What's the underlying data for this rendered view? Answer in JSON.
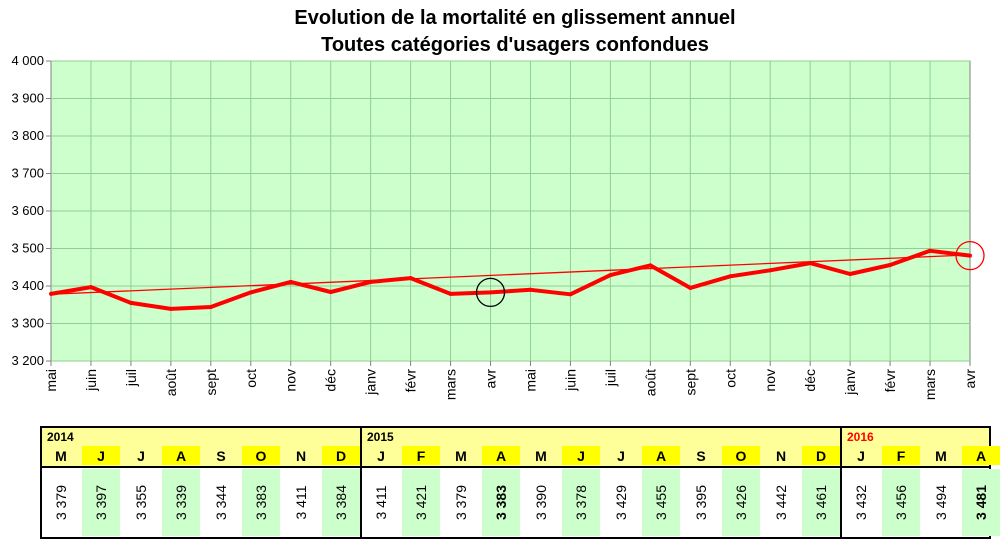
{
  "chart_data": {
    "type": "line",
    "title": [
      "Evolution de la mortalité en glissement annuel",
      "Toutes catégories d'usagers confondues"
    ],
    "xlabel": "",
    "ylabel": "",
    "x": [
      "mai",
      "juin",
      "juil",
      "août",
      "sept",
      "oct",
      "nov",
      "déc",
      "janv",
      "févr",
      "mars",
      "avr",
      "mai",
      "juin",
      "juil",
      "août",
      "sept",
      "oct",
      "nov",
      "déc",
      "janv",
      "févr",
      "mars",
      "avr"
    ],
    "series": [
      {
        "values": [
          3379,
          3397,
          3355,
          3339,
          3344,
          3383,
          3411,
          3384,
          3411,
          3421,
          3379,
          3383,
          3390,
          3378,
          3429,
          3455,
          3395,
          3426,
          3442,
          3461,
          3432,
          3456,
          3494,
          3481
        ]
      }
    ],
    "trendline": [
      3378,
      3483
    ],
    "ylim": [
      3200,
      4000
    ],
    "yticks": [
      "3 200",
      "3 300",
      "3 400",
      "3 500",
      "3 600",
      "3 700",
      "3 800",
      "3 900",
      "4 000"
    ],
    "grid": true,
    "highlighted_points": [
      {
        "index": 11,
        "color": "#000000"
      },
      {
        "index": 23,
        "color": "#ff0000"
      }
    ],
    "colors": {
      "line": "#ff0000",
      "plot_bg": "#ccffcc",
      "grid": "#8fd08f",
      "highlight_cell": "#ffff00",
      "value_cell": "#ccffcc",
      "year_band": "#ffff99"
    }
  },
  "table": {
    "groups": [
      {
        "year": "2014",
        "year_color": "#000000",
        "cells": [
          {
            "m": "M",
            "v": "3 379",
            "h": false,
            "b": false
          },
          {
            "m": "J",
            "v": "3 397",
            "h": true,
            "b": false
          },
          {
            "m": "J",
            "v": "3 355",
            "h": false,
            "b": false
          },
          {
            "m": "A",
            "v": "3 339",
            "h": true,
            "b": false
          },
          {
            "m": "S",
            "v": "3 344",
            "h": false,
            "b": false
          },
          {
            "m": "O",
            "v": "3 383",
            "h": true,
            "b": false
          },
          {
            "m": "N",
            "v": "3 411",
            "h": false,
            "b": false
          },
          {
            "m": "D",
            "v": "3 384",
            "h": true,
            "b": false
          }
        ]
      },
      {
        "year": "2015",
        "year_color": "#000000",
        "cells": [
          {
            "m": "J",
            "v": "3 411",
            "h": false,
            "b": false
          },
          {
            "m": "F",
            "v": "3 421",
            "h": true,
            "b": false
          },
          {
            "m": "M",
            "v": "3 379",
            "h": false,
            "b": false
          },
          {
            "m": "A",
            "v": "3 383",
            "h": true,
            "b": true
          },
          {
            "m": "M",
            "v": "3 390",
            "h": false,
            "b": false
          },
          {
            "m": "J",
            "v": "3 378",
            "h": true,
            "b": false
          },
          {
            "m": "J",
            "v": "3 429",
            "h": false,
            "b": false
          },
          {
            "m": "A",
            "v": "3 455",
            "h": true,
            "b": false
          },
          {
            "m": "S",
            "v": "3 395",
            "h": false,
            "b": false
          },
          {
            "m": "O",
            "v": "3 426",
            "h": true,
            "b": false
          },
          {
            "m": "N",
            "v": "3 442",
            "h": false,
            "b": false
          },
          {
            "m": "D",
            "v": "3 461",
            "h": true,
            "b": false
          }
        ]
      },
      {
        "year": "2016",
        "year_color": "#ff0000",
        "cells": [
          {
            "m": "J",
            "v": "3 432",
            "h": false,
            "b": false
          },
          {
            "m": "F",
            "v": "3 456",
            "h": true,
            "b": false
          },
          {
            "m": "M",
            "v": "3 494",
            "h": false,
            "b": false
          },
          {
            "m": "A",
            "v": "3 481",
            "h": true,
            "b": true,
            "red": true
          }
        ]
      }
    ]
  }
}
